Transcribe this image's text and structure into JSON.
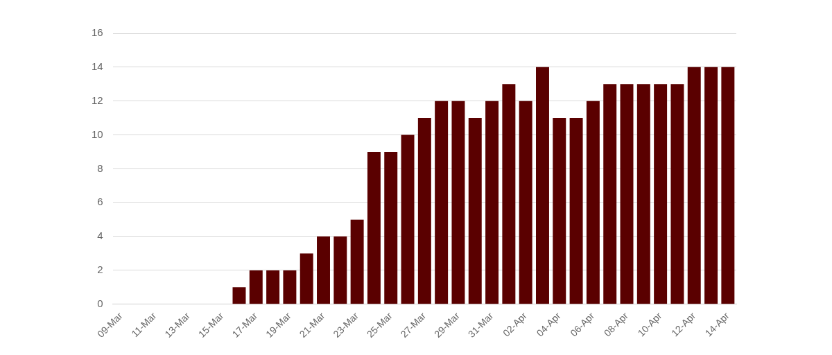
{
  "chart_data": {
    "type": "bar",
    "categories": [
      "09-Mar",
      null,
      "11-Mar",
      null,
      "13-Mar",
      null,
      "15-Mar",
      null,
      "17-Mar",
      null,
      "19-Mar",
      null,
      "21-Mar",
      null,
      "23-Mar",
      null,
      "25-Mar",
      null,
      "27-Mar",
      null,
      "29-Mar",
      null,
      "31-Mar",
      null,
      "02-Apr",
      null,
      "04-Apr",
      null,
      "06-Apr",
      null,
      "08-Apr",
      null,
      "10-Apr",
      null,
      "12-Apr",
      null,
      "14-Apr"
    ],
    "values": [
      0,
      0,
      0,
      0,
      0,
      0,
      0,
      1,
      2,
      2,
      2,
      3,
      4,
      4,
      5,
      9,
      9,
      10,
      11,
      12,
      12,
      11,
      12,
      13,
      12,
      14,
      11,
      11,
      12,
      13,
      13,
      13,
      13,
      13,
      14,
      14,
      14
    ],
    "color": "#5a0000",
    "ylim": [
      0,
      16
    ],
    "yticks": [
      0,
      2,
      4,
      6,
      8,
      10,
      12,
      14,
      16
    ],
    "grid": "y",
    "legend": false
  }
}
